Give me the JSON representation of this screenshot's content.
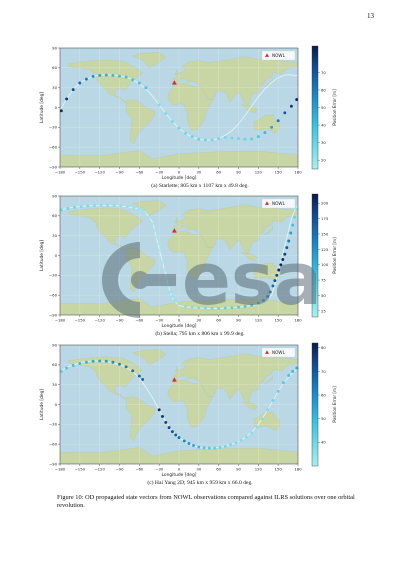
{
  "page_number": "13",
  "watermark_text": "esa",
  "legend_label": "NOWL",
  "figures": [
    {
      "caption": "(a) Starlette; 805 km x 1107 km x 49.8 deg.",
      "chart_data": {
        "type": "scatter",
        "xlabel": "Longitude [deg]",
        "ylabel": "Latitude [deg]",
        "colorbar_label": "Position Error [m]",
        "xlim": [
          -180,
          180
        ],
        "ylim": [
          -90,
          90
        ],
        "xticks": [
          "−180",
          "−150",
          "−120",
          "−90",
          "−60",
          "−30",
          "0",
          "30",
          "60",
          "90",
          "120",
          "150",
          "180"
        ],
        "yticks": [
          "−90",
          "−60",
          "−30",
          "0",
          "30",
          "60",
          "90"
        ],
        "colorbar_range": [
          15,
          85
        ],
        "colorbar_ticks": [
          "20",
          "30",
          "40",
          "50",
          "60",
          "70"
        ],
        "marker": {
          "lon": -7,
          "lat": 37
        },
        "track": {
          "ground_track": [
            [
              -180,
              -4
            ],
            [
              -170,
              13
            ],
            [
              -160,
              27
            ],
            [
              -150,
              37
            ],
            [
              -140,
              43
            ],
            [
              -130,
              47
            ],
            [
              -120,
              49
            ],
            [
              -110,
              49.5
            ],
            [
              -100,
              49
            ],
            [
              -90,
              48
            ],
            [
              -80,
              46
            ],
            [
              -70,
              42
            ],
            [
              -60,
              36
            ],
            [
              -50,
              28
            ],
            [
              -40,
              17
            ],
            [
              -30,
              4
            ],
            [
              -20,
              -9
            ],
            [
              -10,
              -21
            ],
            [
              0,
              -31
            ],
            [
              10,
              -39
            ],
            [
              20,
              -45
            ],
            [
              30,
              -48
            ],
            [
              40,
              -49.5
            ],
            [
              50,
              -49
            ],
            [
              60,
              -47
            ],
            [
              70,
              -42
            ],
            [
              80,
              -35
            ],
            [
              90,
              -25
            ],
            [
              100,
              -12
            ],
            [
              110,
              2
            ],
            [
              120,
              16
            ],
            [
              130,
              28
            ],
            [
              140,
              38
            ],
            [
              150,
              45
            ],
            [
              160,
              49
            ],
            [
              170,
              49.5
            ],
            [
              180,
              48
            ]
          ]
        },
        "segments": [
          {
            "lon": [
              -178,
              -170,
              -160,
              -150
            ],
            "lat": [
              -5,
              13,
              27,
              37
            ],
            "error": [
              82,
              78,
              72,
              65
            ]
          },
          {
            "lon": [
              -140,
              -130,
              -120,
              -110,
              -100,
              -90,
              -80,
              -70,
              -60,
              -50
            ],
            "lat": [
              43,
              47,
              48.5,
              49,
              48.5,
              47.5,
              46,
              42,
              37,
              30
            ],
            "error": [
              60,
              55,
              50,
              46,
              43,
              41,
              40,
              39,
              38,
              37
            ]
          },
          {
            "lon": [
              -30,
              -20,
              -10,
              0,
              10,
              20,
              30,
              40,
              50,
              60,
              70,
              80,
              90,
              100,
              110,
              120,
              130,
              140,
              150,
              160,
              170,
              178
            ],
            "lat": [
              4,
              -9,
              -21,
              -31,
              -39,
              -44,
              -48,
              -49,
              -49,
              -47,
              -45,
              -46,
              -47,
              -48,
              -47.5,
              -44,
              -38,
              -30,
              -20,
              -8,
              2,
              12
            ],
            "error": [
              25,
              26,
              27,
              28,
              29,
              30,
              31,
              30,
              29,
              28,
              27,
              27,
              28,
              30,
              33,
              37,
              42,
              50,
              60,
              70,
              78,
              82
            ]
          }
        ]
      }
    },
    {
      "caption": "(b) Stella; 795 km x 806 km x 99.9 deg.",
      "chart_data": {
        "type": "scatter",
        "xlabel": "Longitude [deg]",
        "ylabel": "Latitude [deg]",
        "colorbar_label": "Position Error [m]",
        "xlim": [
          -180,
          180
        ],
        "ylim": [
          -90,
          90
        ],
        "xticks": [
          "−180",
          "−150",
          "−120",
          "−90",
          "−60",
          "−30",
          "0",
          "30",
          "60",
          "90",
          "120",
          "150",
          "180"
        ],
        "yticks": [
          "−90",
          "−60",
          "−30",
          "0",
          "30",
          "60",
          "90"
        ],
        "colorbar_range": [
          15,
          215
        ],
        "colorbar_ticks": [
          "25",
          "50",
          "75",
          "100",
          "125",
          "150",
          "175",
          "200"
        ],
        "marker": {
          "lon": -7,
          "lat": 37
        },
        "track": {
          "ground_track": [
            [
              -180,
              69
            ],
            [
              -160,
              73
            ],
            [
              -140,
              75
            ],
            [
              -120,
              76
            ],
            [
              -100,
              76
            ],
            [
              -80,
              74
            ],
            [
              -60,
              70
            ],
            [
              -50,
              65
            ],
            [
              -40,
              50
            ],
            [
              -35,
              30
            ],
            [
              -30,
              10
            ],
            [
              -25,
              -10
            ],
            [
              -20,
              -30
            ],
            [
              -15,
              -50
            ],
            [
              -10,
              -65
            ],
            [
              0,
              -76
            ],
            [
              20,
              -79
            ],
            [
              40,
              -80
            ],
            [
              60,
              -80
            ],
            [
              80,
              -79
            ],
            [
              100,
              -77
            ],
            [
              120,
              -74
            ],
            [
              130,
              -70
            ],
            [
              140,
              -60
            ],
            [
              145,
              -45
            ],
            [
              150,
              -25
            ],
            [
              155,
              -5
            ],
            [
              160,
              15
            ],
            [
              165,
              35
            ],
            [
              170,
              55
            ],
            [
              175,
              68
            ],
            [
              180,
              76
            ]
          ]
        },
        "segments": [
          {
            "lon": [
              -178,
              -168,
              -158,
              -148,
              -138,
              -128,
              -118,
              -108,
              -98,
              -88,
              -78,
              -68,
              -60,
              -55,
              -50
            ],
            "lat": [
              69,
              71,
              73,
              74,
              75,
              75.5,
              76,
              76,
              75.5,
              75,
              74,
              72,
              70,
              68,
              66
            ],
            "error": [
              60,
              55,
              50,
              48,
              46,
              44,
              42,
              40,
              38,
              36,
              34,
              32,
              30,
              28,
              26
            ]
          },
          {
            "lon": [
              -45,
              -40,
              -36,
              -33,
              -30,
              -28
            ],
            "lat": [
              58,
              48,
              38,
              28,
              18,
              8
            ],
            "error": [
              25,
              24,
              23,
              22,
              21,
              20
            ]
          },
          {
            "lon": [
              -25,
              -22,
              -19,
              -16,
              -13,
              -10,
              -6,
              0,
              10,
              20,
              30,
              40,
              50,
              60,
              70,
              80,
              90,
              100,
              110,
              120,
              128,
              134,
              138,
              142,
              145,
              148,
              151,
              154,
              157,
              160,
              163,
              166,
              169,
              172,
              175,
              178
            ],
            "lat": [
              -10,
              -22,
              -34,
              -46,
              -55,
              -62,
              -68,
              -73,
              -77,
              -78,
              -79,
              -79.5,
              -80,
              -80,
              -79.5,
              -79,
              -78,
              -77,
              -75,
              -72,
              -68,
              -62,
              -55,
              -46,
              -38,
              -30,
              -22,
              -14,
              -6,
              2,
              12,
              22,
              34,
              46,
              58,
              70
            ],
            "error": [
              22,
              24,
              26,
              28,
              30,
              32,
              34,
              36,
              40,
              44,
              48,
              52,
              56,
              60,
              64,
              68,
              74,
              80,
              88,
              100,
              115,
              130,
              145,
              160,
              175,
              190,
              205,
              210,
              205,
              190,
              170,
              145,
              115,
              85,
              60,
              40
            ]
          }
        ]
      }
    },
    {
      "caption": "(c) Hai Yang 2D; 945 km x 959 km x 66.0 deg.",
      "chart_data": {
        "type": "scatter",
        "xlabel": "Longitude [deg]",
        "ylabel": "Latitude [deg]",
        "colorbar_label": "Position Error [m]",
        "xlim": [
          -180,
          180
        ],
        "ylim": [
          -90,
          90
        ],
        "xticks": [
          "−180",
          "−150",
          "−120",
          "−90",
          "−60",
          "−30",
          "0",
          "30",
          "60",
          "90",
          "120",
          "150",
          "180"
        ],
        "yticks": [
          "−90",
          "−60",
          "−30",
          "0",
          "30",
          "60",
          "90"
        ],
        "colorbar_range": [
          30,
          82
        ],
        "colorbar_ticks": [
          "40",
          "50",
          "60",
          "70",
          "80"
        ],
        "marker": {
          "lon": -7,
          "lat": 37
        },
        "track": {
          "ground_track": [
            [
              -180,
              50
            ],
            [
              -170,
              56
            ],
            [
              -160,
              60
            ],
            [
              -150,
              63
            ],
            [
              -140,
              65
            ],
            [
              -130,
              66
            ],
            [
              -120,
              66
            ],
            [
              -110,
              65
            ],
            [
              -100,
              63
            ],
            [
              -90,
              60
            ],
            [
              -80,
              56
            ],
            [
              -70,
              50
            ],
            [
              -60,
              40
            ],
            [
              -50,
              26
            ],
            [
              -40,
              10
            ],
            [
              -30,
              -8
            ],
            [
              -20,
              -26
            ],
            [
              -10,
              -40
            ],
            [
              0,
              -50
            ],
            [
              10,
              -57
            ],
            [
              20,
              -62
            ],
            [
              30,
              -65
            ],
            [
              40,
              -66
            ],
            [
              50,
              -66
            ],
            [
              60,
              -65
            ],
            [
              70,
              -63
            ],
            [
              80,
              -60
            ],
            [
              90,
              -56
            ],
            [
              100,
              -50
            ],
            [
              110,
              -42
            ],
            [
              120,
              -30
            ],
            [
              130,
              -15
            ],
            [
              140,
              2
            ],
            [
              150,
              20
            ],
            [
              160,
              35
            ],
            [
              170,
              46
            ],
            [
              180,
              55
            ]
          ]
        },
        "segments": [
          {
            "lon": [
              -178,
              -170,
              -160,
              -150,
              -140,
              -130,
              -120,
              -110,
              -100,
              -90,
              -80,
              -70,
              -60,
              -55
            ],
            "lat": [
              50,
              55,
              59,
              62,
              64,
              65.5,
              66,
              65.5,
              64,
              61,
              57,
              51,
              43,
              38
            ],
            "error": [
              45,
              46,
              48,
              50,
              52,
              54,
              56,
              58,
              60,
              62,
              64,
              66,
              68,
              70
            ]
          },
          {
            "lon": [
              -30,
              -25,
              -20,
              -15,
              -10,
              -5,
              0,
              8,
              15,
              22,
              30,
              38,
              46,
              54,
              62,
              70,
              78,
              86,
              94,
              102,
              110,
              118,
              126,
              134,
              142,
              150,
              158,
              166,
              172,
              178
            ],
            "lat": [
              -8,
              -18,
              -27,
              -35,
              -41,
              -46,
              -50,
              -55,
              -59,
              -62,
              -64.5,
              -65.5,
              -66,
              -66,
              -65,
              -63.5,
              -61,
              -58,
              -54,
              -49,
              -43,
              -34,
              -22,
              -8,
              6,
              20,
              33,
              44,
              50,
              55
            ],
            "error": [
              80,
              78,
              76,
              74,
              72,
              70,
              66,
              62,
              58,
              54,
              50,
              47,
              45,
              43,
              41,
              40,
              39,
              38,
              37,
              37,
              36,
              36,
              37,
              38,
              40,
              42,
              45,
              48,
              50,
              52
            ]
          }
        ]
      }
    }
  ],
  "figure_caption": "Figure 10: OD propagated state vectors from NOWL observations compared against ILRS solutions over one orbital revolution."
}
